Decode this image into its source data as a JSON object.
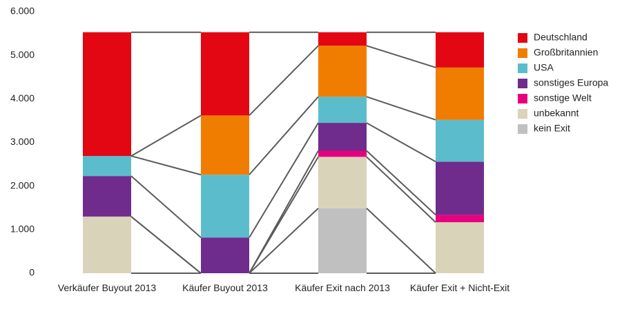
{
  "chart_data": {
    "type": "stacked_bar_flow",
    "categories": [
      "Verkäufer Buyout 2013",
      "Käufer Buyout 2013",
      "Käufer Exit nach 2013",
      "Käufer Exit + Nicht-Exit"
    ],
    "series": [
      {
        "name": "Deutschland",
        "color": "#e30613",
        "values": [
          2840,
          1910,
          310,
          810
        ]
      },
      {
        "name": "Großbritannien",
        "color": "#f07d00",
        "values": [
          0,
          1360,
          1170,
          1200
        ]
      },
      {
        "name": "USA",
        "color": "#5bbccc",
        "values": [
          460,
          1440,
          600,
          960
        ]
      },
      {
        "name": "sonstiges Europa",
        "color": "#6f2c8c",
        "values": [
          930,
          820,
          640,
          1220
        ]
      },
      {
        "name": "sonstige Welt",
        "color": "#e6007e",
        "values": [
          0,
          0,
          140,
          170
        ]
      },
      {
        "name": "unbekannt",
        "color": "#d9d3b9",
        "values": [
          1300,
          0,
          1180,
          1170
        ]
      },
      {
        "name": "kein Exit",
        "color": "#c0c0c0",
        "values": [
          0,
          0,
          1490,
          0
        ]
      }
    ],
    "ylim": [
      0,
      6000
    ],
    "yticks": [
      0,
      {
        "value": 1000,
        "label": "1.000"
      },
      {
        "value": 2000,
        "label": "2.000"
      },
      {
        "value": 3000,
        "label": "3.000"
      },
      {
        "value": 4000,
        "label": "4.000"
      },
      {
        "value": 5000,
        "label": "5.000"
      },
      {
        "value": 6000,
        "label": "6.000"
      }
    ],
    "legend": "right"
  }
}
